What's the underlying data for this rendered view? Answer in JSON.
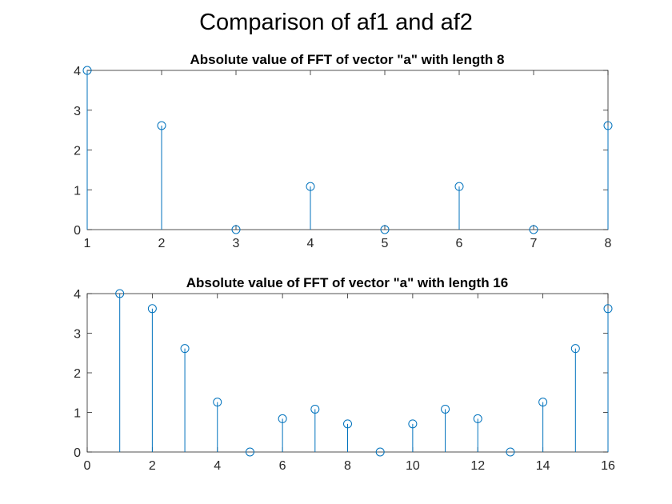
{
  "figure": {
    "title": "Comparison of af1 and af2"
  },
  "style": {
    "stem_color": "#0072BD",
    "axes_color": "#262626"
  },
  "chart_data": [
    {
      "type": "stem",
      "title": "Absolute value of FFT of vector \"a\" with length 8",
      "xlabel": "",
      "ylabel": "",
      "x": [
        1,
        2,
        3,
        4,
        5,
        6,
        7,
        8
      ],
      "values": [
        4,
        2.613,
        0,
        1.082,
        0,
        1.082,
        0,
        2.613
      ],
      "xlim": [
        1,
        8
      ],
      "ylim": [
        0,
        4
      ],
      "xticks": [
        1,
        2,
        3,
        4,
        5,
        6,
        7,
        8
      ],
      "yticks": [
        0,
        1,
        2,
        3,
        4
      ],
      "grid": false
    },
    {
      "type": "stem",
      "title": "Absolute value of FFT of vector \"a\" with length 16",
      "xlabel": "",
      "ylabel": "",
      "x": [
        1,
        2,
        3,
        4,
        5,
        6,
        7,
        8,
        9,
        10,
        11,
        12,
        13,
        14,
        15,
        16
      ],
      "values": [
        4,
        3.62,
        2.613,
        1.26,
        0,
        0.84,
        1.082,
        0.71,
        0,
        0.71,
        1.082,
        0.84,
        0,
        1.26,
        2.613,
        3.62
      ],
      "xlim": [
        0,
        16
      ],
      "ylim": [
        0,
        4
      ],
      "xticks": [
        0,
        2,
        4,
        6,
        8,
        10,
        12,
        14,
        16
      ],
      "yticks": [
        0,
        1,
        2,
        3,
        4
      ],
      "grid": false
    }
  ]
}
